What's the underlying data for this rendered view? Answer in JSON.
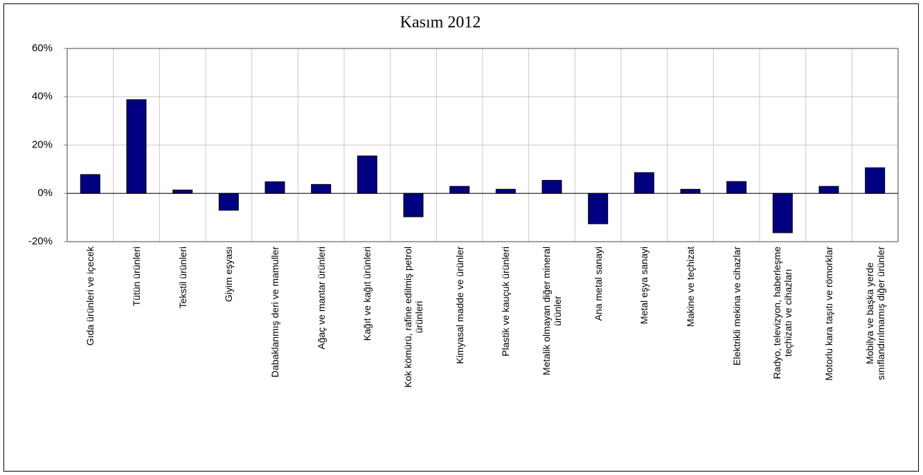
{
  "chart_data": {
    "type": "bar",
    "title": "Kasım 2012",
    "categories": [
      "Gıda ürünleri ve içecek",
      "Tütün ürünleri",
      "Tekstil ürünleri",
      "Giyim eşyası",
      "Dabaklanmış deri ve mamuller",
      "Ağaç ve mantar ürünleri",
      "Kağıt ve kağıt ürünleri",
      "Kok kömürü, rafine edilmiş petrol\nürünleri",
      "Kimyasal madde ve ürünler",
      "Plastik ve kauçuk ürünleri",
      "Metalik olmayan diğer mineral\nürünler",
      "Ana metal sanayi",
      "Metal eşya sanayi",
      "Makine ve teçhizat",
      "Elektrikli mekina ve cihazlar",
      "Radyo, televizyon, haberleşme\nteçhizatı ve cihazları",
      "Motorlu kara taşıtı ve römorklar",
      "Mobilya ve başka yerde\nsınıflandırılmamış diğer ürünler"
    ],
    "values": [
      7.8,
      38.8,
      1.4,
      -7.0,
      4.8,
      3.7,
      15.5,
      -9.7,
      2.9,
      1.7,
      5.4,
      -12.6,
      8.6,
      1.7,
      4.9,
      -16.3,
      2.9,
      10.6
    ],
    "color": "#000080",
    "ylim": [
      -20,
      60
    ],
    "yticks": [
      {
        "value": -20,
        "label": "-20%"
      },
      {
        "value": 0,
        "label": "0%"
      },
      {
        "value": 20,
        "label": "20%"
      },
      {
        "value": 40,
        "label": "40%"
      },
      {
        "value": 60,
        "label": "60%"
      }
    ],
    "grid": true
  }
}
